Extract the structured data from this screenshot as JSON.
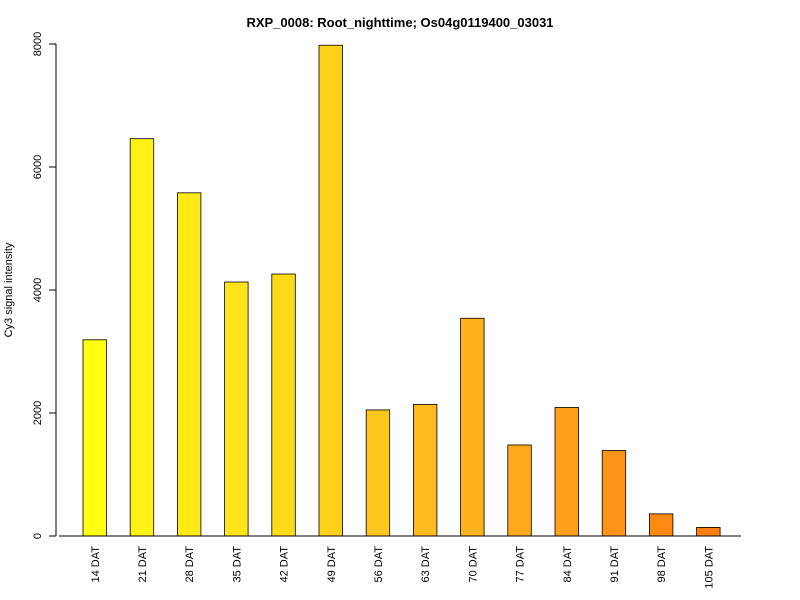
{
  "chart_data": {
    "type": "bar",
    "title": "RXP_0008: Root_nighttime; Os04g0119400_03031",
    "xlabel": "",
    "ylabel": "Cy3 signal intensity",
    "ylim": [
      0,
      8000
    ],
    "yticks": [
      0,
      2000,
      4000,
      6000,
      8000
    ],
    "categories": [
      "14 DAT",
      "21 DAT",
      "28 DAT",
      "35 DAT",
      "42 DAT",
      "49 DAT",
      "56 DAT",
      "63 DAT",
      "70 DAT",
      "77 DAT",
      "84 DAT",
      "91 DAT",
      "98 DAT",
      "105 DAT"
    ],
    "values": [
      3190,
      6460,
      5580,
      4130,
      4260,
      7980,
      2050,
      2140,
      3540,
      1480,
      2090,
      1390,
      360,
      140
    ],
    "colors": [
      "#FFFF10",
      "#FFF314",
      "#FFE917",
      "#FFE419",
      "#FFDA17",
      "#FFD11A",
      "#FFC61B",
      "#FFBB1B",
      "#FFB21C",
      "#FFA91B",
      "#FFA01B",
      "#FF941A",
      "#FF8A12",
      "#FF7F0E"
    ],
    "grid": false,
    "legend": "none"
  }
}
